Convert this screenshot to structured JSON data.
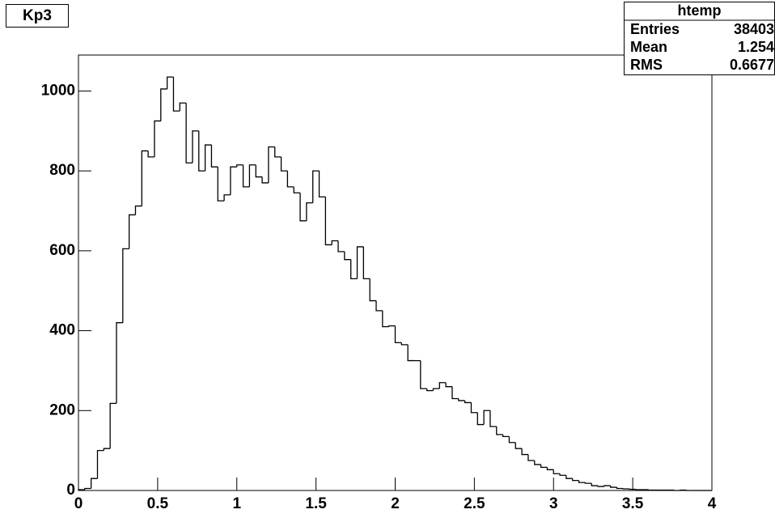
{
  "chart_data": {
    "type": "histogram",
    "title": "Kp3",
    "bins": [
      0,
      0.04,
      0.08,
      0.12,
      0.16,
      0.2,
      0.24,
      0.28,
      0.32,
      0.36,
      0.4,
      0.44,
      0.48,
      0.52,
      0.56,
      0.6,
      0.64,
      0.68,
      0.72,
      0.76,
      0.8,
      0.84,
      0.88,
      0.92,
      0.96,
      1,
      1.04,
      1.08,
      1.12,
      1.16,
      1.2,
      1.24,
      1.28,
      1.32,
      1.36,
      1.4,
      1.44,
      1.48,
      1.52,
      1.56,
      1.6,
      1.64,
      1.68,
      1.72,
      1.76,
      1.8,
      1.84,
      1.88,
      1.92,
      1.96,
      2,
      2.04,
      2.08,
      2.12,
      2.16,
      2.2,
      2.24,
      2.28,
      2.32,
      2.36,
      2.4,
      2.44,
      2.48,
      2.52,
      2.56,
      2.6,
      2.64,
      2.68,
      2.72,
      2.76,
      2.8,
      2.84,
      2.88,
      2.92,
      2.96,
      3,
      3.04,
      3.08,
      3.12,
      3.16,
      3.2,
      3.24,
      3.28,
      3.32,
      3.36,
      3.4,
      3.44,
      3.48,
      3.52,
      3.56,
      3.6,
      3.64,
      3.68,
      3.72,
      3.76,
      3.8,
      3.84,
      3.88,
      3.92,
      3.96,
      4
    ],
    "counts": [
      2,
      5,
      30,
      100,
      105,
      218,
      420,
      605,
      690,
      712,
      850,
      835,
      925,
      1005,
      1035,
      950,
      970,
      820,
      900,
      800,
      865,
      810,
      725,
      740,
      810,
      815,
      760,
      815,
      785,
      770,
      860,
      835,
      800,
      760,
      745,
      675,
      720,
      800,
      735,
      615,
      625,
      598,
      578,
      530,
      610,
      530,
      475,
      450,
      410,
      412,
      370,
      365,
      325,
      325,
      255,
      250,
      255,
      270,
      260,
      230,
      225,
      220,
      195,
      165,
      200,
      160,
      140,
      135,
      120,
      105,
      90,
      75,
      65,
      58,
      52,
      42,
      38,
      30,
      25,
      20,
      18,
      12,
      10,
      12,
      8,
      5,
      4,
      3,
      2,
      2,
      1,
      1,
      1,
      1,
      0,
      1,
      0,
      0,
      0,
      0
    ],
    "color": "#000000",
    "xlim": [
      0,
      4
    ],
    "xticks": [
      0,
      0.5,
      1,
      1.5,
      2,
      2.5,
      3,
      3.5,
      4
    ],
    "ylim": [
      0,
      1090
    ],
    "yticks": [
      0,
      200,
      400,
      600,
      800,
      1000
    ],
    "stats": {
      "title": "htemp",
      "rows": [
        {
          "label": "Entries",
          "value": 38403
        },
        {
          "label": "Mean",
          "value": 1.254
        },
        {
          "label": "RMS",
          "value": 0.6677
        }
      ]
    }
  }
}
